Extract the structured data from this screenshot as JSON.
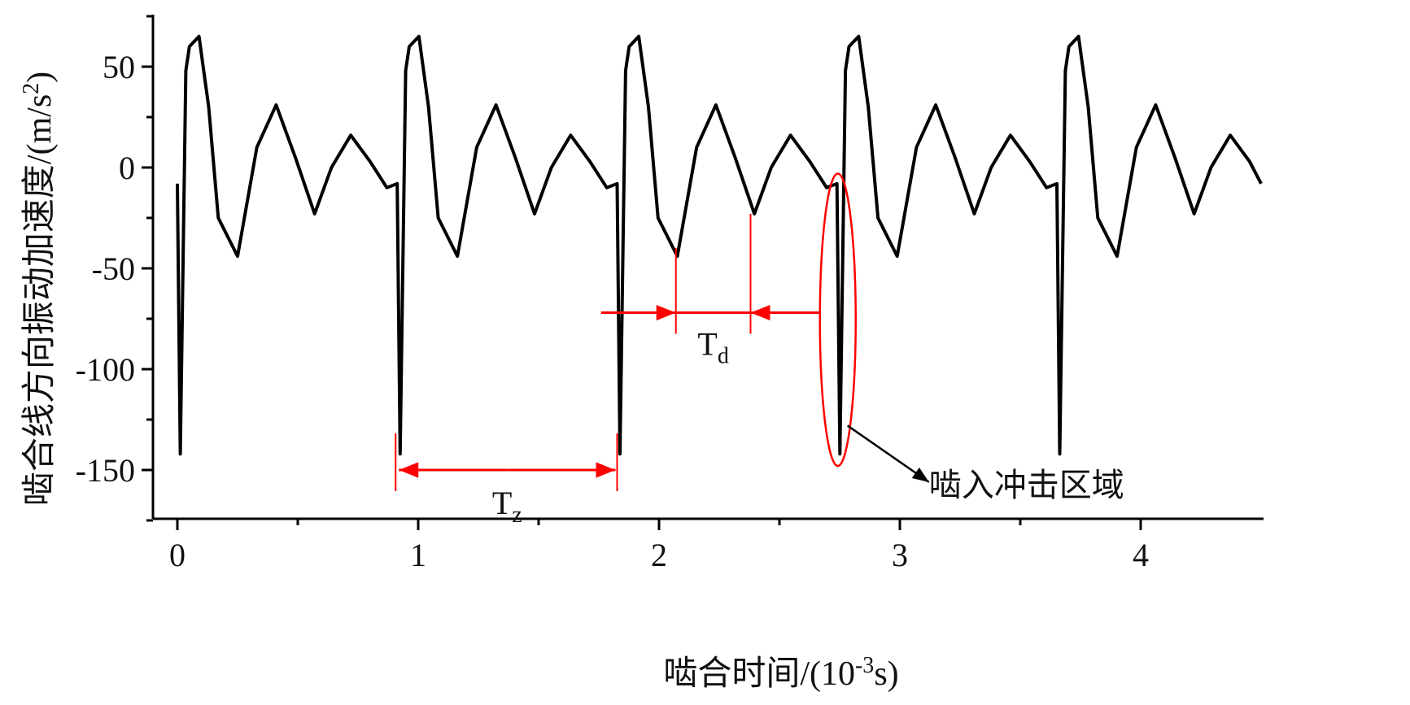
{
  "chart_data": {
    "type": "line",
    "title": "",
    "xlabel": "啮合时间/(10-3s)",
    "xlabel_parts": {
      "prefix": "啮合时间/(10",
      "exp": "-3",
      "suffix": "s)"
    },
    "ylabel": "啮合线方向振动加速度/(m/s2)",
    "ylabel_parts": {
      "prefix": "啮合线方向振动加速度/(m/s",
      "exp": "2",
      "suffix": ")"
    },
    "xlim": [
      -0.1,
      4.5
    ],
    "ylim": [
      -175,
      75
    ],
    "x_ticks": [
      0,
      1,
      2,
      3,
      4
    ],
    "x_tick_labels": [
      "0",
      "1",
      "2",
      "3",
      "4"
    ],
    "y_ticks": [
      50,
      0,
      -50,
      -100,
      -150
    ],
    "y_tick_labels": [
      "50",
      "0",
      "-50",
      "-100",
      "-150"
    ],
    "grid": false,
    "legend": "none",
    "line_color": "#000000",
    "series": [
      {
        "period": 0.913,
        "periods_shown": 5,
        "impact_min": -142,
        "one_period": {
          "x": [
            0.0,
            0.012,
            0.035,
            0.05,
            0.09,
            0.13,
            0.17,
            0.25,
            0.33,
            0.41,
            0.49,
            0.57,
            0.64,
            0.72,
            0.8,
            0.87,
            0.913
          ],
          "y": [
            -8,
            -142,
            48,
            60,
            65,
            30,
            -25,
            -44,
            10,
            31,
            5,
            -23,
            0,
            16,
            3,
            -10,
            -8
          ]
        }
      }
    ],
    "annotations": {
      "tz": {
        "label": "T",
        "sub": "z",
        "x_from": 0.913,
        "x_to": 1.826,
        "y": -150
      },
      "td": {
        "label": "T",
        "sub": "d",
        "x_from": 2.07,
        "x_to": 2.38,
        "y": -72
      },
      "impact_region": {
        "label": "啮入冲击区域",
        "center_x": 2.739,
        "y_from": -148,
        "y_to": -3
      },
      "accent_color": "#ff0000"
    }
  }
}
